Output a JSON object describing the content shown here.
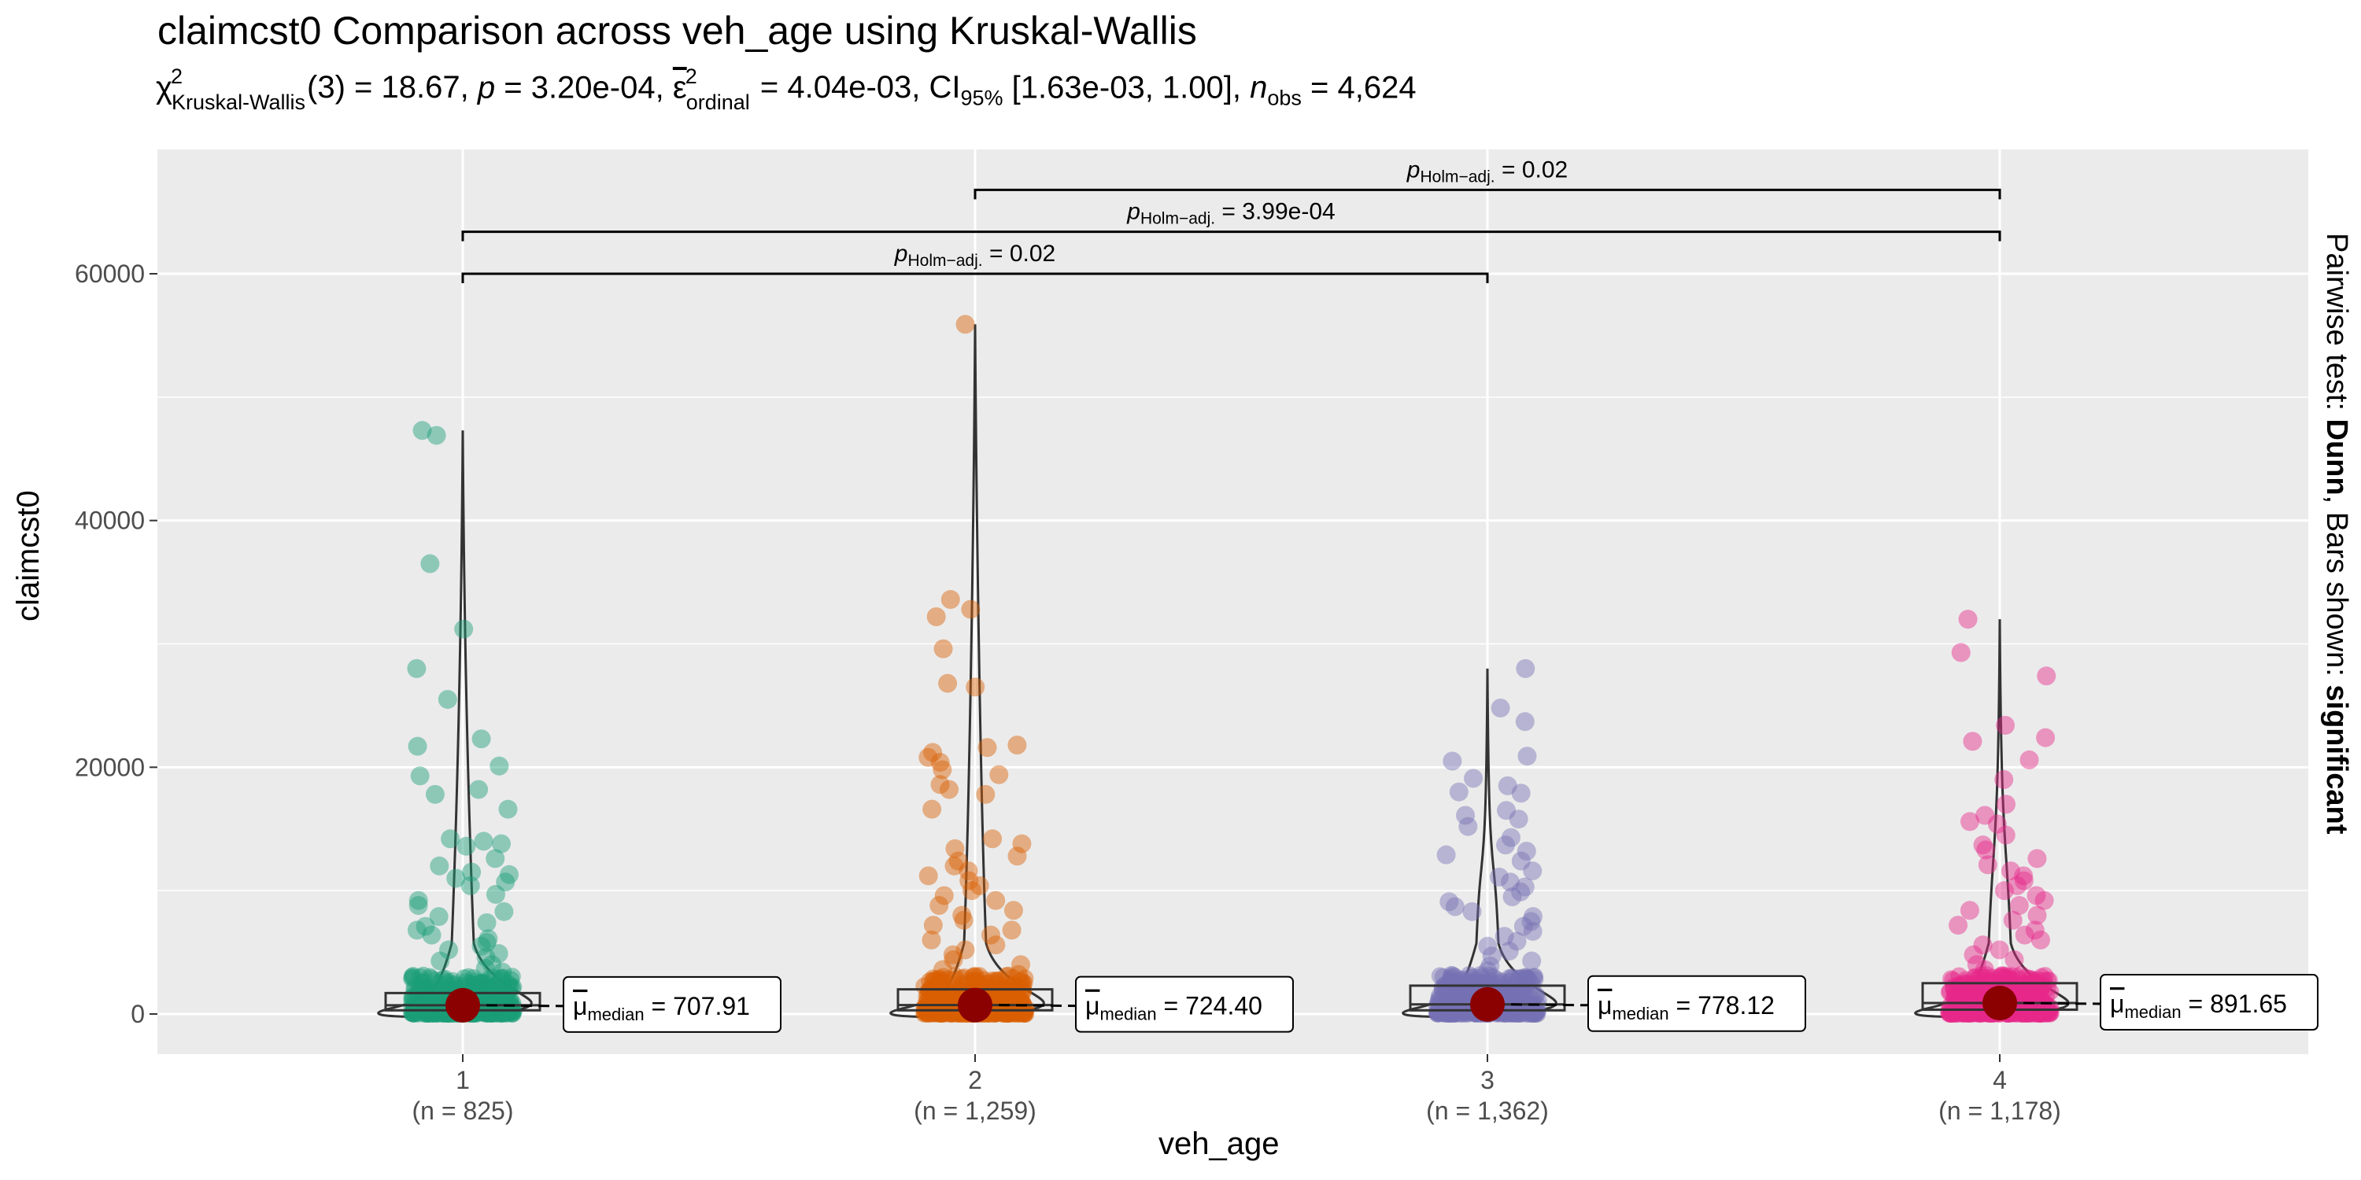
{
  "chart_data": {
    "type": "violin-box-scatter",
    "title": "claimcst0 Comparison across veh_age using Kruskal-Wallis",
    "subtitle": {
      "chi_sym": "χ",
      "chi_sup": "2",
      "chi_sub": "Kruskal-Wallis",
      "chi_val": "(3) = 18.67,",
      "p_sym": "p",
      "p_val": " = 3.20e-04,",
      "eps_sym": "ε",
      "eps_sup": "2",
      "eps_sub": "ordinal",
      "eps_val": " = 4.04e-03, CI",
      "ci_sub": "95%",
      "ci_val": " [1.63e-03, 1.00],",
      "n_sym": "n",
      "n_sub": "obs",
      "n_val": " = 4,624"
    },
    "xlabel": "veh_age",
    "ylabel": "claimcst0",
    "caption_normal": "Pairwise test: ",
    "caption_bold1": "Dunn",
    "caption_mid": ", Bars shown: ",
    "caption_bold2": "significant",
    "ylim": [
      -3200,
      69000
    ],
    "yticks": [
      0,
      20000,
      40000,
      60000
    ],
    "groups": [
      {
        "category": "1",
        "n_label": "(n = 825)",
        "color": "#1B9E77",
        "median": 707.91,
        "median_label": "707.91",
        "q1": 300,
        "q3": 1700,
        "max": 47300,
        "outliers": [
          47300,
          46900,
          36500,
          31200,
          28000,
          25500,
          22300,
          21700,
          20100,
          19300,
          18200,
          17800,
          16600,
          14200,
          14000,
          13800,
          13600,
          12600,
          12000,
          11500,
          11300,
          11000,
          10700,
          10400,
          9700,
          9200,
          8800,
          8300,
          7900,
          7400,
          7100,
          6800,
          6400,
          6100,
          5800,
          5500,
          5200,
          4900,
          4600,
          4300,
          4000,
          3700,
          3400
        ]
      },
      {
        "category": "2",
        "n_label": "(n = 1,259)",
        "color": "#D95F02",
        "median": 724.4,
        "median_label": "724.40",
        "q1": 300,
        "q3": 2000,
        "max": 55900,
        "outliers": [
          55900,
          33600,
          32800,
          32200,
          29600,
          26800,
          26500,
          21800,
          21600,
          21200,
          20800,
          20400,
          19800,
          19400,
          18600,
          18200,
          17800,
          16600,
          14200,
          13800,
          13400,
          12800,
          12400,
          12000,
          11600,
          11200,
          10800,
          10400,
          10000,
          9600,
          9200,
          8800,
          8400,
          8000,
          7600,
          7200,
          6800,
          6400,
          6000,
          5600,
          5200,
          4800,
          4400,
          4000,
          3600,
          3200
        ]
      },
      {
        "category": "3",
        "n_label": "(n = 1,362)",
        "color": "#7570B3",
        "median": 778.12,
        "median_label": "778.12",
        "q1": 300,
        "q3": 2300,
        "max": 28000,
        "outliers": [
          28000,
          24800,
          23700,
          20900,
          20500,
          19100,
          18500,
          18000,
          17900,
          16500,
          16100,
          15800,
          15200,
          14300,
          13700,
          13200,
          12900,
          12400,
          11600,
          11100,
          10700,
          10300,
          9900,
          9500,
          9100,
          8700,
          8300,
          7900,
          7500,
          7100,
          6700,
          6300,
          5900,
          5500,
          5100,
          4700,
          4300,
          3900,
          3500
        ]
      },
      {
        "category": "4",
        "n_label": "(n = 1,178)",
        "color": "#E7298A",
        "median": 891.65,
        "median_label": "891.65",
        "q1": 350,
        "q3": 2500,
        "max": 32000,
        "outliers": [
          32000,
          29300,
          27400,
          23400,
          22400,
          22100,
          20600,
          19000,
          17000,
          16100,
          15600,
          15400,
          14500,
          13700,
          13300,
          12600,
          12100,
          11600,
          11200,
          10800,
          10400,
          10000,
          9600,
          9200,
          8800,
          8400,
          8000,
          7600,
          7200,
          6800,
          6400,
          6000,
          5600,
          5200,
          4800,
          4400,
          4000,
          3600
        ]
      }
    ],
    "pairwise": [
      {
        "from": "1",
        "to": "3",
        "y": 60000,
        "label_prefix": "p",
        "label_sub": "Holm−adj.",
        "label_val": " = 0.02"
      },
      {
        "from": "1",
        "to": "4",
        "y": 63400,
        "label_prefix": "p",
        "label_sub": "Holm−adj.",
        "label_val": " = 3.99e-04"
      },
      {
        "from": "2",
        "to": "4",
        "y": 66800,
        "label_prefix": "p",
        "label_sub": "Holm−adj.",
        "label_val": " = 0.02"
      }
    ],
    "median_label_prefix": "μ",
    "median_label_sub": "median",
    "median_label_eq": " = ",
    "grid": true,
    "background": "#EBEBEB",
    "median_point_color": "#8B0000"
  }
}
